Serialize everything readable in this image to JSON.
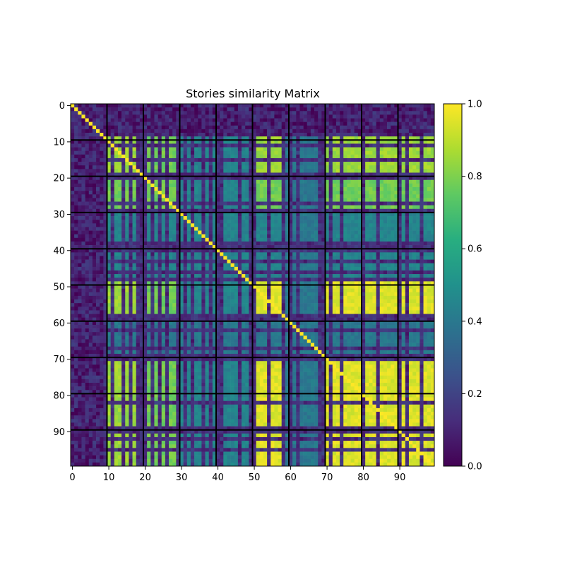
{
  "chart_data": {
    "type": "heatmap",
    "title": "Stories similarity Matrix",
    "xlabel": "",
    "ylabel": "",
    "size": 100,
    "x_ticks": [
      "0",
      "10",
      "20",
      "30",
      "40",
      "50",
      "60",
      "70",
      "80",
      "90"
    ],
    "y_ticks": [
      "0",
      "10",
      "20",
      "30",
      "40",
      "50",
      "60",
      "70",
      "80",
      "90"
    ],
    "colorbar": {
      "min": 0.0,
      "max": 1.0,
      "ticks": [
        "0.0",
        "0.2",
        "0.4",
        "0.6",
        "0.8",
        "1.0"
      ],
      "colormap": "viridis"
    },
    "row_groups": [
      {
        "rows": [
          0,
          8
        ],
        "level": 0.05
      },
      {
        "rows": [
          9,
          18
        ],
        "level": 0.85
      },
      {
        "rows": [
          19,
          29
        ],
        "level": 0.78
      },
      {
        "rows": [
          30,
          48
        ],
        "level": 0.45
      },
      {
        "rows": [
          49,
          58
        ],
        "level": 0.95
      },
      {
        "rows": [
          59,
          68
        ],
        "level": 0.4
      },
      {
        "rows": [
          69,
          89
        ],
        "level": 0.95
      },
      {
        "rows": [
          90,
          99
        ],
        "level": 0.95
      }
    ],
    "col_groups": [
      {
        "cols": [
          0,
          8
        ],
        "level": 0.05
      },
      {
        "cols": [
          9,
          18
        ],
        "level": 0.85
      },
      {
        "cols": [
          19,
          29
        ],
        "level": 0.78
      },
      {
        "cols": [
          30,
          48
        ],
        "level": 0.45
      },
      {
        "cols": [
          49,
          58
        ],
        "level": 0.95
      },
      {
        "cols": [
          59,
          68
        ],
        "level": 0.4
      },
      {
        "cols": [
          69,
          89
        ],
        "level": 0.95
      },
      {
        "cols": [
          90,
          99
        ],
        "level": 0.95
      }
    ],
    "dark_rows": [
      11,
      15,
      19,
      20,
      27,
      29,
      38,
      39,
      40,
      43,
      46,
      48,
      58,
      59,
      62,
      67,
      69,
      70,
      82,
      89,
      90,
      92,
      95
    ],
    "dark_cols": [
      9,
      11,
      14,
      16,
      18,
      19,
      20,
      22,
      24,
      26,
      29,
      31,
      33,
      36,
      38,
      40,
      41,
      46,
      49,
      50,
      54,
      58,
      60,
      62,
      68,
      69,
      71,
      74,
      80,
      84,
      90,
      92,
      96
    ],
    "separator_lines": [
      9.5,
      19.5,
      29.5,
      39.5,
      49.5,
      59.5,
      69.5,
      79.5,
      89.5
    ],
    "diagonal": 1.0
  }
}
